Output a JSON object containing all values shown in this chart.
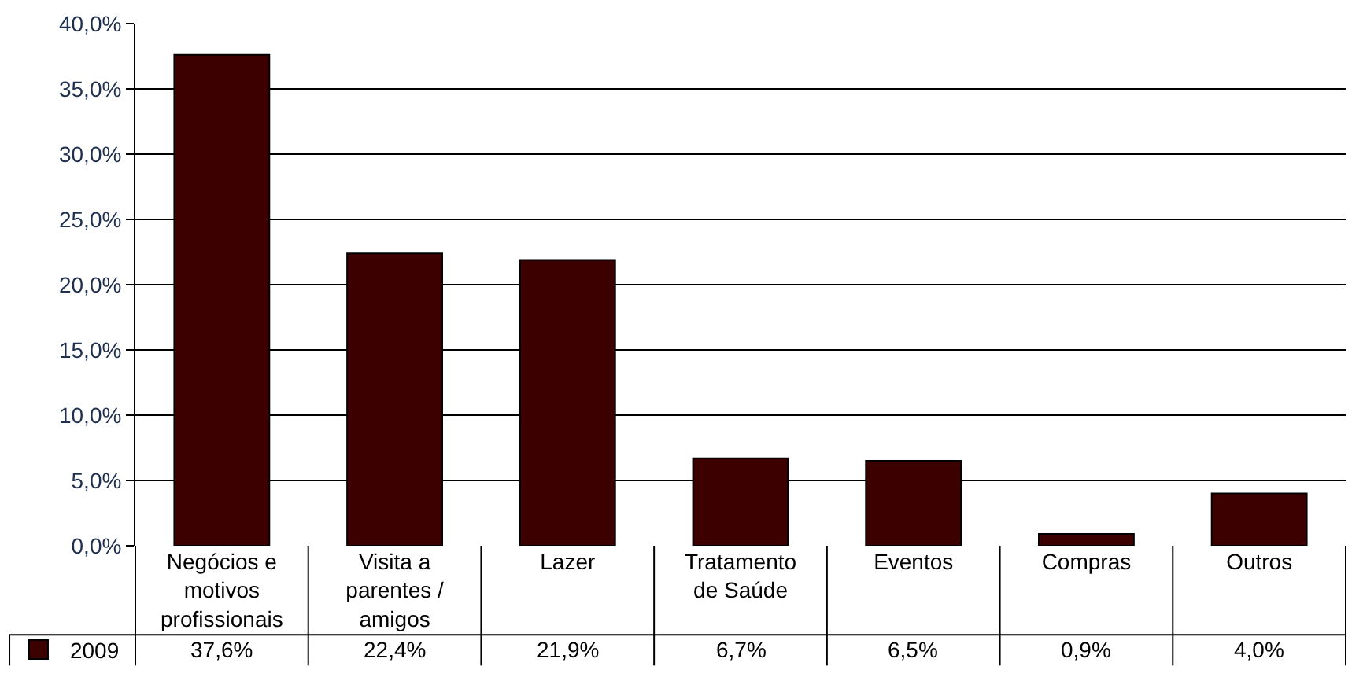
{
  "chart_data": {
    "type": "bar",
    "categories": [
      "Negócios e motivos profissionais",
      "Visita a parentes / amigos",
      "Lazer",
      "Tratamento de Saúde",
      "Eventos",
      "Compras",
      "Outros"
    ],
    "series": [
      {
        "name": "2009",
        "color": "#3d0000",
        "values": [
          37.6,
          22.4,
          21.9,
          6.7,
          6.5,
          0.9,
          4.0
        ],
        "value_labels": [
          "37,6%",
          "22,4%",
          "21,9%",
          "6,7%",
          "6,5%",
          "0,9%",
          "4,0%"
        ]
      }
    ],
    "ylim": [
      0,
      40
    ],
    "yticks": [
      {
        "value": 0,
        "label": "0,0%"
      },
      {
        "value": 5,
        "label": "5,0%"
      },
      {
        "value": 10,
        "label": "10,0%"
      },
      {
        "value": 15,
        "label": "15,0%"
      },
      {
        "value": 20,
        "label": "20,0%"
      },
      {
        "value": 25,
        "label": "25,0%"
      },
      {
        "value": 30,
        "label": "30,0%"
      },
      {
        "value": 35,
        "label": "35,0%"
      },
      {
        "value": 40,
        "label": "40,0%"
      }
    ],
    "grid": "y",
    "legend": "bottom left"
  }
}
